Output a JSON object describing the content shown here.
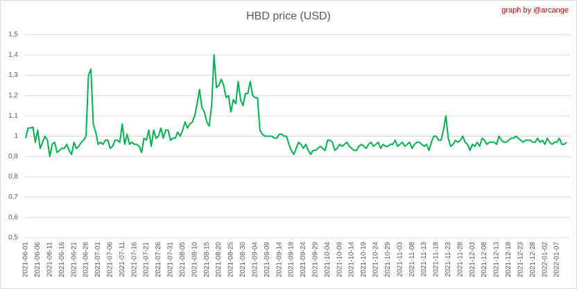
{
  "chart_data": {
    "type": "line",
    "title": "HBD price (USD)",
    "annotation": "graph by @arcange",
    "color": "#00b050",
    "grid": true,
    "ylim": [
      0.5,
      1.5
    ],
    "yticks": [
      {
        "value": 0.5,
        "label": "0,5"
      },
      {
        "value": 0.6,
        "label": "0,6"
      },
      {
        "value": 0.7,
        "label": "0,7"
      },
      {
        "value": 0.8,
        "label": "0,8"
      },
      {
        "value": 0.9,
        "label": "0,9"
      },
      1,
      {
        "value": 1.1,
        "label": "1,1"
      },
      {
        "value": 1.2,
        "label": "1,2"
      },
      {
        "value": 1.3,
        "label": "1,3"
      },
      {
        "value": 1.4,
        "label": "1,4"
      },
      {
        "value": 1.5,
        "label": "1,5"
      }
    ],
    "categories": [
      "2021-06-01",
      null,
      null,
      null,
      null,
      "2021-06-06",
      null,
      null,
      null,
      null,
      "2021-06-11",
      null,
      null,
      null,
      null,
      "2021-06-16",
      null,
      null,
      null,
      null,
      "2021-06-21",
      null,
      null,
      null,
      null,
      "2021-06-26",
      null,
      null,
      null,
      null,
      "2021-07-01",
      null,
      null,
      null,
      null,
      "2021-07-06",
      null,
      null,
      null,
      null,
      "2021-07-11",
      null,
      null,
      null,
      null,
      "2021-07-16",
      null,
      null,
      null,
      null,
      "2021-07-21",
      null,
      null,
      null,
      null,
      "2021-07-26",
      null,
      null,
      null,
      null,
      "2021-07-31",
      null,
      null,
      null,
      null,
      "2021-08-05",
      null,
      null,
      null,
      null,
      "2021-08-10",
      null,
      null,
      null,
      null,
      "2021-08-15",
      null,
      null,
      null,
      null,
      "2021-08-20",
      null,
      null,
      null,
      null,
      "2021-08-25",
      null,
      null,
      null,
      null,
      "2021-08-30",
      null,
      null,
      null,
      null,
      "2021-09-04",
      null,
      null,
      null,
      null,
      "2021-09-09",
      null,
      null,
      null,
      null,
      "2021-09-14",
      null,
      null,
      null,
      null,
      "2021-09-19",
      null,
      null,
      null,
      null,
      "2021-09-24",
      null,
      null,
      null,
      null,
      "2021-09-29",
      null,
      null,
      null,
      null,
      "2021-10-04",
      null,
      null,
      null,
      null,
      "2021-10-09",
      null,
      null,
      null,
      null,
      "2021-10-14",
      null,
      null,
      null,
      null,
      "2021-10-19",
      null,
      null,
      null,
      null,
      "2021-10-24",
      null,
      null,
      null,
      null,
      "2021-10-29",
      null,
      null,
      null,
      null,
      "2021-11-03",
      null,
      null,
      null,
      null,
      "2021-11-08",
      null,
      null,
      null,
      null,
      "2021-11-13",
      null,
      null,
      null,
      null,
      "2021-11-18",
      null,
      null,
      null,
      null,
      "2021-11-23",
      null,
      null,
      null,
      null,
      "2021-11-28",
      null,
      null,
      null,
      null,
      "2021-12-03",
      null,
      null,
      null,
      null,
      "2021-12-08",
      null,
      null,
      null,
      null,
      "2021-12-13",
      null,
      null,
      null,
      null,
      "2021-12-18",
      null,
      null,
      null,
      null,
      "2021-12-23",
      null,
      null,
      null,
      null,
      "2021-12-28",
      null,
      null,
      null,
      null,
      "2022-01-02",
      null,
      null,
      null,
      null,
      "2022-01-07",
      null,
      null,
      null,
      null
    ],
    "values": [
      0.99,
      1.04,
      1.04,
      1.045,
      0.97,
      1.03,
      0.94,
      0.97,
      1.0,
      0.98,
      0.9,
      0.96,
      0.97,
      0.92,
      0.93,
      0.94,
      0.94,
      0.96,
      0.93,
      0.91,
      0.97,
      0.94,
      0.95,
      0.97,
      0.98,
      1.0,
      1.3,
      1.33,
      1.06,
      1.02,
      0.96,
      0.97,
      0.96,
      0.98,
      0.98,
      0.94,
      0.95,
      0.98,
      0.98,
      0.97,
      1.06,
      0.96,
      1.01,
      0.96,
      0.97,
      0.96,
      0.96,
      0.95,
      0.92,
      0.99,
      0.98,
      1.03,
      0.95,
      1.03,
      0.99,
      1.0,
      1.04,
      0.99,
      1.03,
      1.03,
      0.98,
      0.99,
      0.99,
      1.02,
      1.0,
      1.03,
      1.07,
      1.04,
      1.06,
      1.07,
      1.1,
      1.16,
      1.23,
      1.14,
      1.12,
      1.07,
      1.05,
      1.15,
      1.4,
      1.24,
      1.25,
      1.28,
      1.25,
      1.19,
      1.2,
      1.12,
      1.18,
      1.16,
      1.27,
      1.18,
      1.15,
      1.21,
      1.21,
      1.27,
      1.2,
      1.19,
      1.19,
      1.03,
      1.01,
      1.0,
      1.0,
      1.0,
      1.0,
      0.99,
      0.99,
      1.01,
      1.01,
      1.0,
      1.0,
      0.96,
      0.93,
      0.91,
      0.94,
      0.97,
      0.96,
      0.94,
      0.96,
      0.93,
      0.91,
      0.93,
      0.93,
      0.94,
      0.95,
      0.94,
      0.93,
      0.98,
      0.98,
      0.97,
      0.93,
      0.94,
      0.96,
      0.95,
      0.96,
      0.97,
      0.95,
      0.94,
      0.93,
      0.93,
      0.95,
      0.96,
      0.95,
      0.94,
      0.96,
      0.97,
      0.95,
      0.96,
      0.97,
      0.94,
      0.96,
      0.95,
      0.95,
      0.96,
      0.96,
      0.98,
      0.95,
      0.96,
      0.97,
      0.95,
      0.96,
      0.97,
      0.94,
      0.96,
      0.97,
      0.97,
      0.96,
      0.95,
      0.96,
      0.93,
      0.97,
      1.0,
      1.0,
      0.98,
      0.98,
      1.03,
      1.1,
      0.99,
      0.95,
      0.96,
      0.98,
      0.97,
      0.98,
      1.0,
      0.97,
      0.96,
      0.93,
      0.96,
      0.95,
      0.97,
      0.95,
      0.99,
      0.98,
      0.96,
      0.97,
      0.97,
      0.97,
      0.96,
      1.0,
      0.98,
      0.97,
      0.97,
      0.98,
      0.99,
      0.99,
      1.0,
      0.99,
      0.98,
      0.97,
      0.98,
      0.98,
      0.98,
      0.97,
      0.97,
      0.99,
      0.97,
      0.98,
      0.96,
      0.99,
      0.97,
      0.96,
      0.97,
      0.97,
      0.99,
      0.96,
      0.96,
      0.97
    ]
  }
}
